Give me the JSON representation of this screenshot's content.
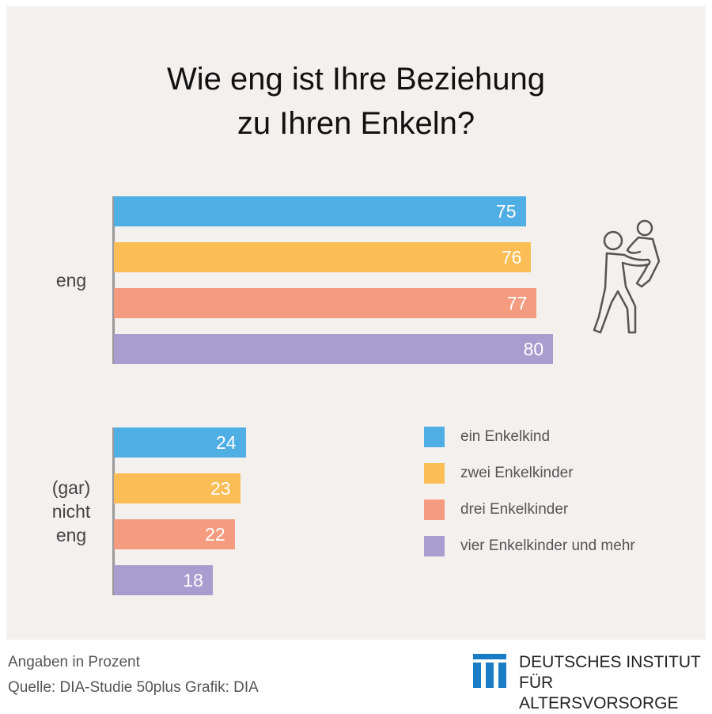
{
  "chart_data": {
    "type": "bar",
    "orientation": "horizontal",
    "title": "Wie eng ist Ihre Beziehung zu Ihren Enkeln?",
    "title_lines": [
      "Wie eng ist Ihre Beziehung",
      "zu Ihren Enkeln?"
    ],
    "categories": [
      "eng",
      "(gar) nicht eng"
    ],
    "category_lines": [
      [
        "eng"
      ],
      [
        "(gar)",
        "nicht",
        "eng"
      ]
    ],
    "series": [
      {
        "name": "ein Enkelkind",
        "color": "#4faee3",
        "values": [
          75,
          24
        ]
      },
      {
        "name": "zwei Enkelkinder",
        "color": "#fbbd55",
        "values": [
          76,
          23
        ]
      },
      {
        "name": "drei Enkelkinder",
        "color": "#f59b80",
        "values": [
          77,
          22
        ]
      },
      {
        "name": "vier Enkelkinder und mehr",
        "color": "#a99dd0",
        "values": [
          80,
          18
        ]
      }
    ],
    "xlim": [
      0,
      100
    ],
    "grid": false,
    "legend_position": "right"
  },
  "icon": "grandparent-carrying-child-icon",
  "footer": {
    "unit": "Angaben in Prozent",
    "source": "Quelle: DIA-Studie 50plus  Grafik: DIA"
  },
  "logo": {
    "line1": "DEUTSCHES INSTITUT",
    "line2": "FÜR ALTERSVORSORGE",
    "color": "#1a7cc4"
  }
}
